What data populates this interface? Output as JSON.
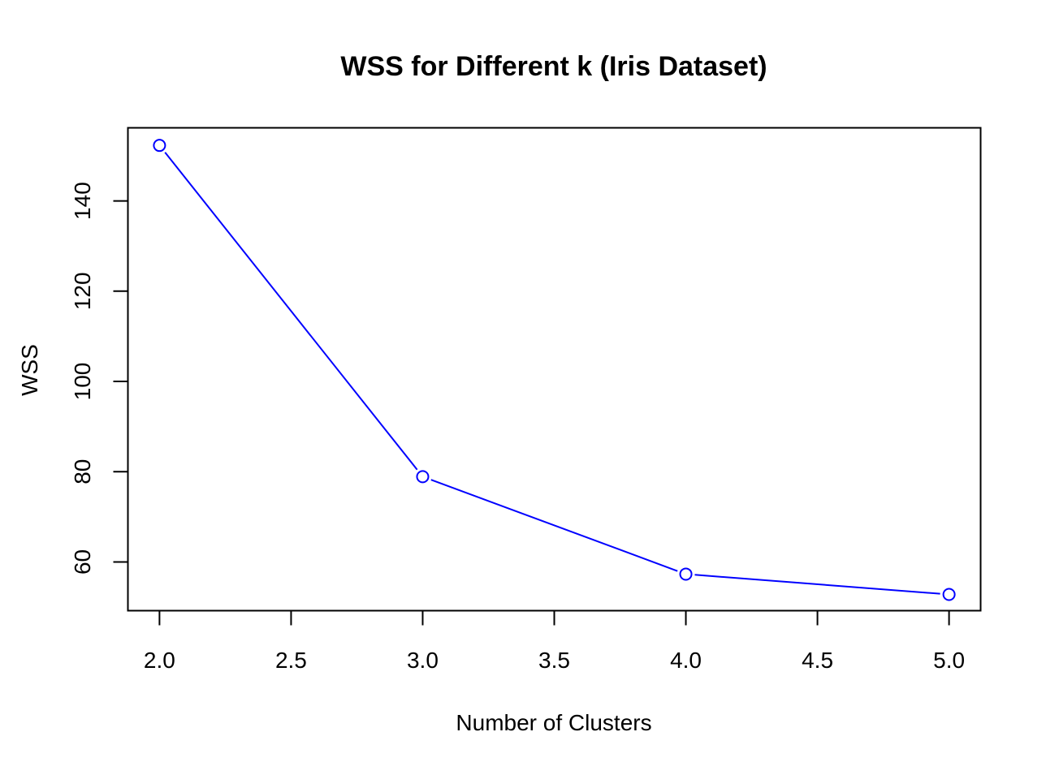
{
  "chart_data": {
    "type": "line",
    "title": "WSS for Different k (Iris Dataset)",
    "xlabel": "Number of Clusters",
    "ylabel": "WSS",
    "x": [
      2,
      3,
      4,
      5
    ],
    "series": [
      {
        "values": [
          152.3,
          78.9,
          57.3,
          52.8
        ],
        "color": "#0000ff",
        "marker": "open-circle"
      }
    ],
    "xlim": [
      1.88,
      5.12
    ],
    "ylim": [
      49.2,
      156.2
    ],
    "x_ticks": [
      {
        "value": 2.0,
        "label": "2.0"
      },
      {
        "value": 2.5,
        "label": "2.5"
      },
      {
        "value": 3.0,
        "label": "3.0"
      },
      {
        "value": 3.5,
        "label": "3.5"
      },
      {
        "value": 4.0,
        "label": "4.0"
      },
      {
        "value": 4.5,
        "label": "4.5"
      },
      {
        "value": 5.0,
        "label": "5.0"
      }
    ],
    "y_ticks": [
      {
        "value": 60,
        "label": "60"
      },
      {
        "value": 80,
        "label": "80"
      },
      {
        "value": 100,
        "label": "100"
      },
      {
        "value": 120,
        "label": "120"
      },
      {
        "value": 140,
        "label": "140"
      }
    ],
    "grid": false,
    "legend": "none"
  }
}
